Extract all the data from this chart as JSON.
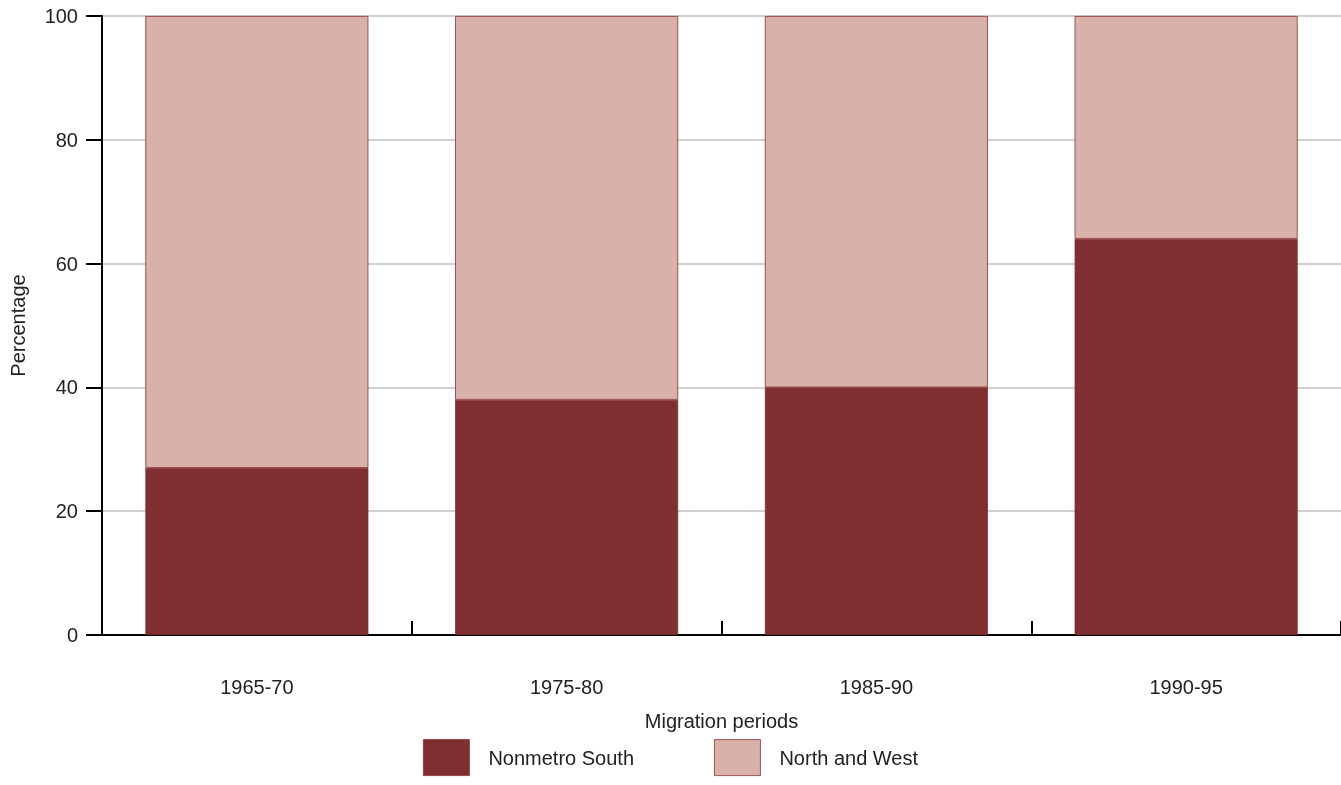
{
  "chart_data": {
    "type": "bar",
    "stacked": true,
    "xlabel": "Migration periods",
    "ylabel": "Percentage",
    "categories": [
      "1965-70",
      "1975-80",
      "1985-90",
      "1990-95"
    ],
    "series": [
      {
        "name": "Nonmetro South",
        "color": "#7f2f30",
        "values": [
          27,
          38,
          40,
          64
        ]
      },
      {
        "name": "North and West",
        "color": "#d8b1aa",
        "values": [
          73,
          62,
          60,
          36
        ]
      }
    ],
    "ylim": [
      0,
      100
    ],
    "yticks": [
      0,
      20,
      40,
      60,
      80,
      100
    ],
    "grid": "y",
    "legend": "bottom"
  }
}
